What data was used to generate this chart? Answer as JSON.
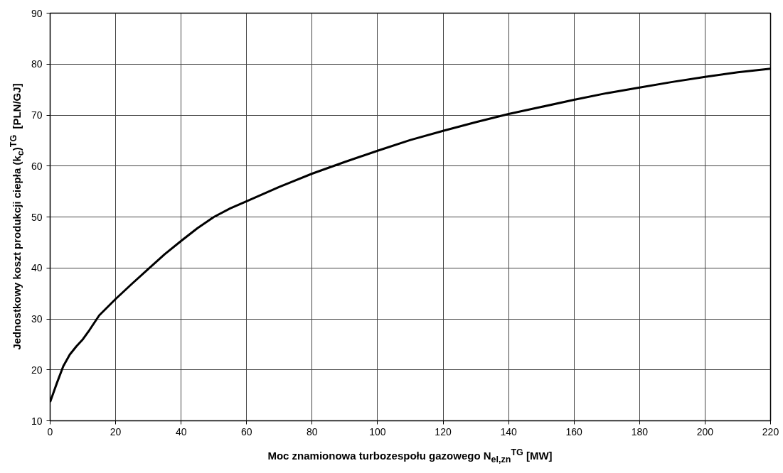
{
  "chart_data": {
    "type": "line",
    "xlabel": "Moc znamionowa turbozespołu gazowego N$_{el,zn}$$^{TG}$ [MW]",
    "ylabel": "Jednostkowy koszt produkcji ciepła (k$_{c}$)$^{TG}$  [PLN/GJ]",
    "x": [
      0,
      2,
      4,
      6,
      8,
      10,
      12,
      15,
      20,
      25,
      30,
      35,
      40,
      45,
      50,
      55,
      60,
      70,
      80,
      90,
      100,
      110,
      120,
      130,
      140,
      150,
      160,
      170,
      180,
      190,
      200,
      210,
      220
    ],
    "series": [
      {
        "color": "#000000",
        "values": [
          13.7,
          17.3,
          20.7,
          23,
          24.6,
          26,
          27.8,
          30.7,
          33.9,
          36.9,
          39.8,
          42.7,
          45.3,
          47.8,
          50,
          51.7,
          53.1,
          55.9,
          58.5,
          60.8,
          63,
          65.1,
          66.9,
          68.6,
          70.2,
          71.6,
          73,
          74.3,
          75.4,
          76.5,
          77.5,
          78.4,
          79.1
        ]
      }
    ],
    "xlim": [
      0,
      220
    ],
    "ylim": [
      10,
      90
    ],
    "xticks": [
      0,
      20,
      40,
      60,
      80,
      100,
      120,
      140,
      160,
      180,
      200,
      220
    ],
    "yticks": [
      10,
      20,
      30,
      40,
      50,
      60,
      70,
      80,
      90
    ],
    "grid": true,
    "marker": "none",
    "line_style": "solid"
  }
}
